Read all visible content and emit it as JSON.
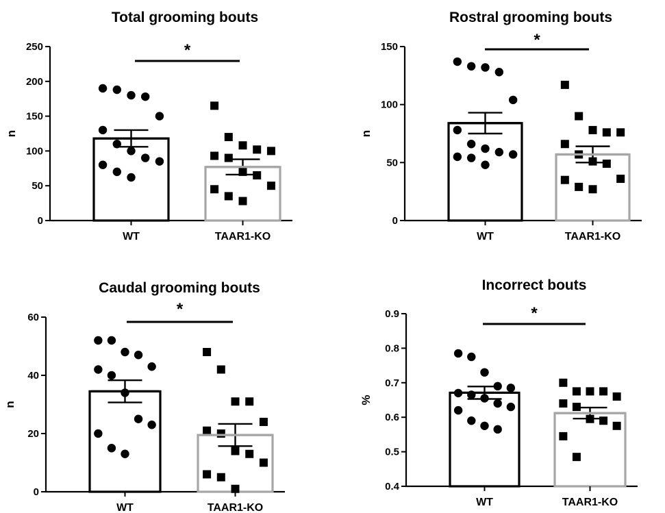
{
  "colors": {
    "wt": "#000000",
    "ko": "#a6a6a6",
    "points": "#000000"
  },
  "chart_data": [
    {
      "type": "bar",
      "title": "Total grooming bouts",
      "ylabel": "n",
      "ylim": [
        0,
        250
      ],
      "yticks": [
        0,
        50,
        100,
        150,
        200,
        250
      ],
      "categories": [
        "WT",
        "TAAR1-KO"
      ],
      "means": [
        118,
        77
      ],
      "sem": [
        12,
        11
      ],
      "markers": [
        "circle-icon",
        "square-icon"
      ],
      "points": [
        [
          190,
          188,
          180,
          178,
          150,
          130,
          110,
          100,
          90,
          85,
          80,
          70,
          62
        ],
        [
          165,
          120,
          108,
          100,
          102,
          93,
          90,
          70,
          65,
          50,
          45,
          35,
          28
        ]
      ],
      "significance": "*"
    },
    {
      "type": "bar",
      "title": "Rostral grooming bouts",
      "ylabel": "n",
      "ylim": [
        0,
        150
      ],
      "yticks": [
        0,
        50,
        100,
        150
      ],
      "categories": [
        "WT",
        "TAAR1-KO"
      ],
      "means": [
        84,
        57
      ],
      "sem": [
        9,
        7
      ],
      "markers": [
        "circle-icon",
        "square-icon"
      ],
      "points": [
        [
          137,
          133,
          132,
          128,
          104,
          78,
          66,
          62,
          59,
          57,
          55,
          54,
          48
        ],
        [
          117,
          90,
          78,
          76,
          76,
          66,
          57,
          51,
          49,
          36,
          35,
          29,
          27
        ]
      ],
      "significance": "*"
    },
    {
      "type": "bar",
      "title": "Caudal grooming bouts",
      "ylabel": "n",
      "ylim": [
        0,
        60
      ],
      "yticks": [
        0,
        20,
        40,
        60
      ],
      "categories": [
        "WT",
        "TAAR1-KO"
      ],
      "means": [
        34.5,
        19.5
      ],
      "sem": [
        3.8,
        3.8
      ],
      "markers": [
        "circle-icon",
        "square-icon"
      ],
      "points": [
        [
          52,
          52,
          48,
          47,
          43,
          42,
          40,
          34,
          25,
          23,
          20,
          15,
          13
        ],
        [
          48,
          42,
          31,
          31,
          24,
          21,
          20,
          14,
          13,
          10,
          6,
          5,
          1
        ]
      ],
      "significance": "*"
    },
    {
      "type": "bar",
      "title": "Incorrect bouts",
      "ylabel": "%",
      "ylim": [
        0.4,
        0.9
      ],
      "yticks": [
        0.4,
        0.5,
        0.6,
        0.7,
        0.8,
        0.9
      ],
      "categories": [
        "WT",
        "TAAR1-KO"
      ],
      "means": [
        0.671,
        0.612
      ],
      "sem": [
        0.018,
        0.016
      ],
      "markers": [
        "circle-icon",
        "square-icon"
      ],
      "points": [
        [
          0.785,
          0.775,
          0.73,
          0.69,
          0.685,
          0.67,
          0.665,
          0.655,
          0.64,
          0.63,
          0.62,
          0.59,
          0.575,
          0.565
        ],
        [
          0.7,
          0.675,
          0.675,
          0.675,
          0.66,
          0.64,
          0.63,
          0.595,
          0.59,
          0.575,
          0.545,
          0.485
        ]
      ],
      "significance": "*"
    }
  ]
}
